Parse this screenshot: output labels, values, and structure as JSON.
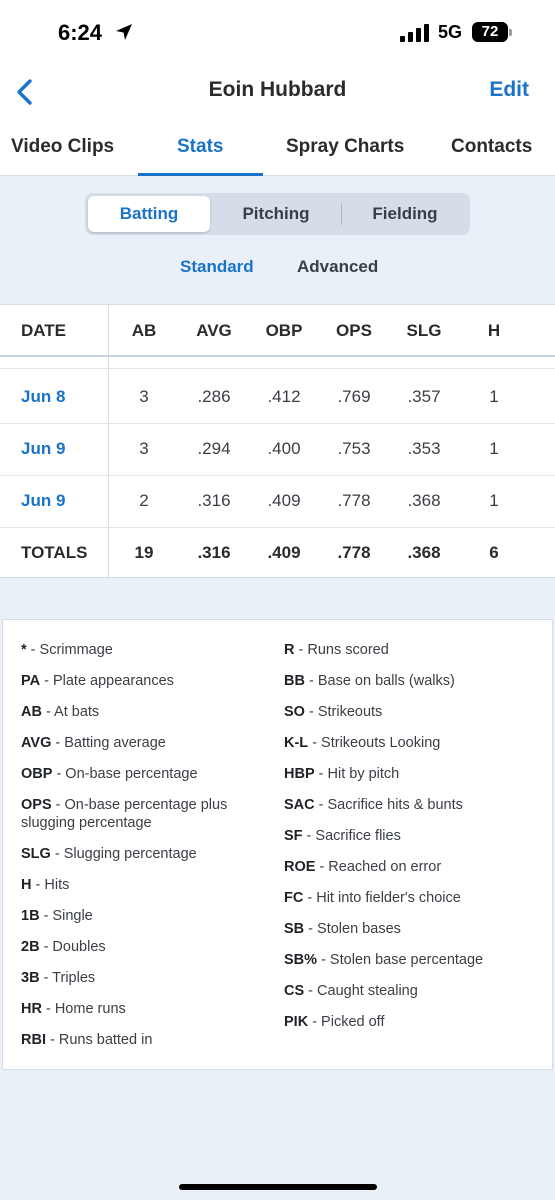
{
  "status_bar": {
    "time": "6:24",
    "network": "5G",
    "battery": "72"
  },
  "nav": {
    "title": "Eoin Hubbard",
    "edit_label": "Edit",
    "back_icon": "chevron-left-icon"
  },
  "tabs": [
    {
      "label": "Video Clips",
      "active": false
    },
    {
      "label": "Stats",
      "active": true
    },
    {
      "label": "Spray Charts",
      "active": false
    },
    {
      "label": "Contacts",
      "active": false
    }
  ],
  "segments": [
    {
      "label": "Batting",
      "active": true
    },
    {
      "label": "Pitching",
      "active": false
    },
    {
      "label": "Fielding",
      "active": false
    }
  ],
  "subtabs": [
    {
      "label": "Standard",
      "active": true
    },
    {
      "label": "Advanced",
      "active": false
    }
  ],
  "table": {
    "columns": [
      "DATE",
      "AB",
      "AVG",
      "OBP",
      "OPS",
      "SLG",
      "H"
    ],
    "rows": [
      [
        "Jun 8",
        "3",
        ".286",
        ".412",
        ".769",
        ".357",
        "1"
      ],
      [
        "Jun 9",
        "3",
        ".294",
        ".400",
        ".753",
        ".353",
        "1"
      ],
      [
        "Jun 9",
        "2",
        ".316",
        ".409",
        ".778",
        ".368",
        "1"
      ]
    ],
    "totals": [
      "TOTALS",
      "19",
      ".316",
      ".409",
      ".778",
      ".368",
      "6"
    ]
  },
  "legend": {
    "left": [
      {
        "abbr": "*",
        "desc": " - Scrimmage"
      },
      {
        "abbr": "PA",
        "desc": " - Plate appearances"
      },
      {
        "abbr": "AB",
        "desc": " - At bats"
      },
      {
        "abbr": "AVG",
        "desc": " - Batting average"
      },
      {
        "abbr": "OBP",
        "desc": " - On-base percentage"
      },
      {
        "abbr": "OPS",
        "desc": " - On-base percentage plus slugging percentage"
      },
      {
        "abbr": "SLG",
        "desc": " - Slugging percentage"
      },
      {
        "abbr": "H",
        "desc": " - Hits"
      },
      {
        "abbr": "1B",
        "desc": " - Single"
      },
      {
        "abbr": "2B",
        "desc": " - Doubles"
      },
      {
        "abbr": "3B",
        "desc": " - Triples"
      },
      {
        "abbr": "HR",
        "desc": " - Home runs"
      },
      {
        "abbr": "RBI",
        "desc": " - Runs batted in"
      }
    ],
    "right": [
      {
        "abbr": "R",
        "desc": " - Runs scored"
      },
      {
        "abbr": "BB",
        "desc": " - Base on balls (walks)"
      },
      {
        "abbr": "SO",
        "desc": " - Strikeouts"
      },
      {
        "abbr": "K-L",
        "desc": " - Strikeouts Looking"
      },
      {
        "abbr": "HBP",
        "desc": " - Hit by pitch"
      },
      {
        "abbr": "SAC",
        "desc": " - Sacrifice hits & bunts"
      },
      {
        "abbr": "SF",
        "desc": " - Sacrifice flies"
      },
      {
        "abbr": "ROE",
        "desc": " - Reached on error"
      },
      {
        "abbr": "FC",
        "desc": " - Hit into fielder's choice"
      },
      {
        "abbr": "SB",
        "desc": " - Stolen bases"
      },
      {
        "abbr": "SB%",
        "desc": " - Stolen base percentage"
      },
      {
        "abbr": "CS",
        "desc": " - Caught stealing"
      },
      {
        "abbr": "PIK",
        "desc": " - Picked off"
      }
    ]
  },
  "colors": {
    "accent": "#1a73c8",
    "background": "#eaf0f8"
  }
}
